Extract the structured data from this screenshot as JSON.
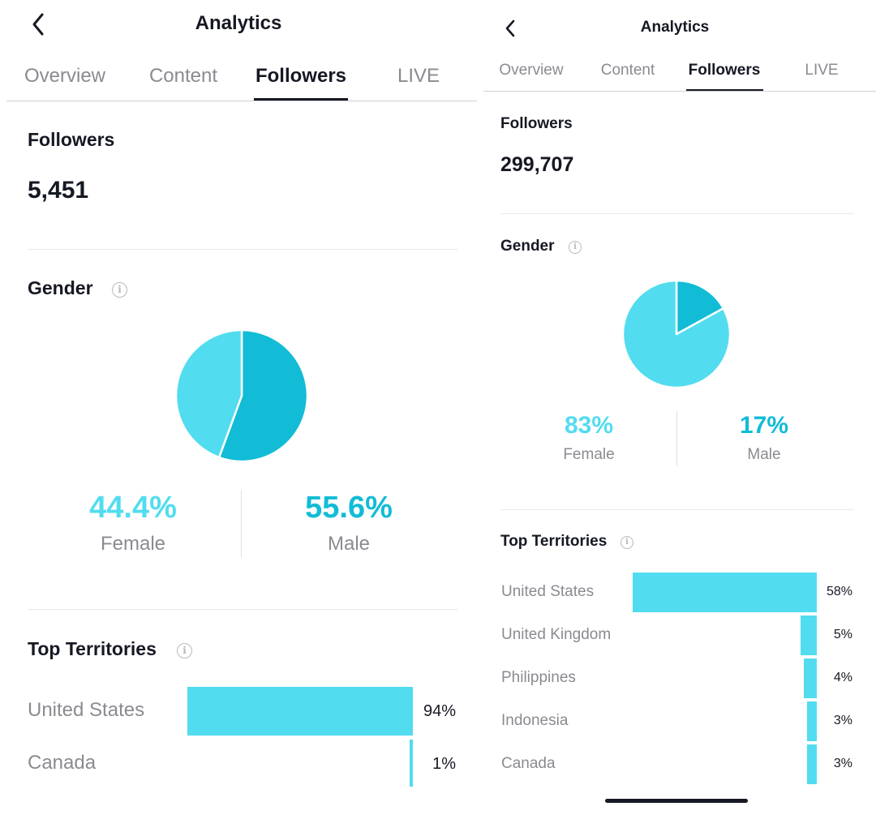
{
  "left": {
    "header": {
      "title": "Analytics"
    },
    "tabs": [
      {
        "label": "Overview"
      },
      {
        "label": "Content"
      },
      {
        "label": "Followers"
      },
      {
        "label": "LIVE"
      }
    ],
    "followers": {
      "title": "Followers",
      "count": "5,451"
    },
    "gender": {
      "title": "Gender",
      "female": {
        "pct": "44.4%",
        "label": "Female",
        "value": 44.4
      },
      "male": {
        "pct": "55.6%",
        "label": "Male",
        "value": 55.6
      }
    },
    "territories": {
      "title": "Top Territories",
      "items": [
        {
          "name": "United States",
          "pct": "94%",
          "value": 94
        },
        {
          "name": "Canada",
          "pct": "1%",
          "value": 1
        }
      ]
    }
  },
  "right": {
    "header": {
      "title": "Analytics"
    },
    "tabs": [
      {
        "label": "Overview"
      },
      {
        "label": "Content"
      },
      {
        "label": "Followers"
      },
      {
        "label": "LIVE"
      }
    ],
    "followers": {
      "title": "Followers",
      "count": "299,707"
    },
    "gender": {
      "title": "Gender",
      "female": {
        "pct": "83%",
        "label": "Female",
        "value": 83
      },
      "male": {
        "pct": "17%",
        "label": "Male",
        "value": 17
      }
    },
    "territories": {
      "title": "Top Territories",
      "items": [
        {
          "name": "United States",
          "pct": "58%",
          "value": 58
        },
        {
          "name": "United Kingdom",
          "pct": "5%",
          "value": 5
        },
        {
          "name": "Philippines",
          "pct": "4%",
          "value": 4
        },
        {
          "name": "Indonesia",
          "pct": "3%",
          "value": 3
        },
        {
          "name": "Canada",
          "pct": "3%",
          "value": 3
        }
      ]
    }
  },
  "colors": {
    "female": "#52dcef",
    "male": "#12bcd6",
    "bar": "#52dcef",
    "text": "#161823",
    "muted": "#8a8b91"
  },
  "icons": [
    "chevron-left-icon",
    "info-icon"
  ]
}
